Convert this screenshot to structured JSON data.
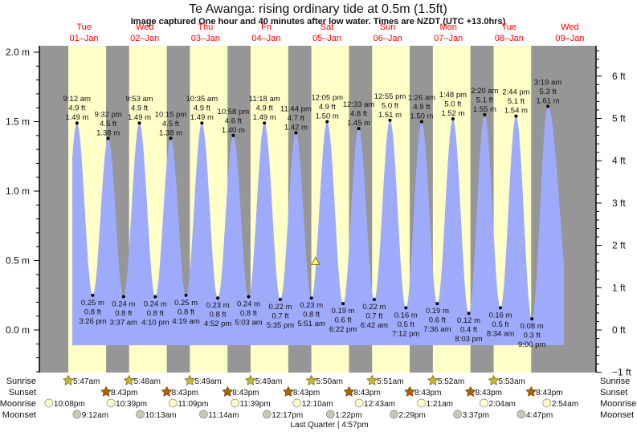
{
  "title": "Te Awanga: rising  ordinary tide at 0.5m (1.5ft)",
  "subtitle": "Image captured One hour and 40 minutes after low water. Times are NZDT (UTC +13.0hrs)",
  "colors": {
    "night": "#969696",
    "day": "#ffffc8",
    "water": "#9eabfb",
    "day_label": "#ff0000",
    "sunrise": "#b8b83c",
    "sunset": "#b06400",
    "moonrise": "#ffffcc",
    "moonset": "#c8c8b4"
  },
  "chart_data": {
    "type": "area",
    "title": "Te Awanga: rising  ordinary tide at 0.5m (1.5ft)",
    "left_axis": {
      "unit": "m",
      "range": [
        -0.31,
        2.05
      ],
      "ticks": [
        "2.0 m",
        "1.5 m",
        "1.0 m",
        "0.5 m",
        "0.0 m"
      ]
    },
    "right_axis": {
      "unit": "ft",
      "range": [
        -1,
        6.7
      ],
      "ticks": [
        "6 ft",
        "5 ft",
        "4 ft",
        "3 ft",
        "2 ft",
        "1 ft",
        "0 ft",
        "−1 ft"
      ]
    },
    "grid": false,
    "days": [
      {
        "dow": "Tue",
        "date": "01–Jan"
      },
      {
        "dow": "Wed",
        "date": "02–Jan"
      },
      {
        "dow": "Thu",
        "date": "03–Jan"
      },
      {
        "dow": "Fri",
        "date": "04–Jan"
      },
      {
        "dow": "Sat",
        "date": "05–Jan"
      },
      {
        "dow": "Sun",
        "date": "06–Jan"
      },
      {
        "dow": "Mon",
        "date": "07–Jan"
      },
      {
        "dow": "Tue",
        "date": "08–Jan"
      },
      {
        "dow": "Wed",
        "date": "09–Jan"
      }
    ],
    "tides": [
      {
        "type": "high",
        "day": 1,
        "time": "9:12 am",
        "ft": "4.9 ft",
        "m": "1.49 m"
      },
      {
        "type": "low",
        "day": 1,
        "time": "3:26 pm",
        "ft": "0.8 ft",
        "m": "0.25 m"
      },
      {
        "type": "high",
        "day": 1,
        "time": "9:32 pm",
        "ft": "4.5 ft",
        "m": "1.38 m"
      },
      {
        "type": "low",
        "day": 2,
        "time": "3:37 am",
        "ft": "0.8 ft",
        "m": "0.24 m"
      },
      {
        "type": "high",
        "day": 2,
        "time": "9:53 am",
        "ft": "4.9 ft",
        "m": "1.49 m"
      },
      {
        "type": "low",
        "day": 2,
        "time": "4:10 pm",
        "ft": "0.8 ft",
        "m": "0.24 m"
      },
      {
        "type": "high",
        "day": 2,
        "time": "10:15 pm",
        "ft": "4.5 ft",
        "m": "1.38 m"
      },
      {
        "type": "low",
        "day": 3,
        "time": "4:19 am",
        "ft": "0.8 ft",
        "m": "0.25 m"
      },
      {
        "type": "high",
        "day": 3,
        "time": "10:35 am",
        "ft": "4.9 ft",
        "m": "1.49 m"
      },
      {
        "type": "low",
        "day": 3,
        "time": "4:52 pm",
        "ft": "0.8 ft",
        "m": "0.23 m"
      },
      {
        "type": "high",
        "day": 3,
        "time": "10:58 pm",
        "ft": "4.6 ft",
        "m": "1.40 m"
      },
      {
        "type": "low",
        "day": 4,
        "time": "5:03 am",
        "ft": "0.8 ft",
        "m": "0.24 m"
      },
      {
        "type": "high",
        "day": 4,
        "time": "11:18 am",
        "ft": "4.9 ft",
        "m": "1.49 m"
      },
      {
        "type": "low",
        "day": 4,
        "time": "5:35 pm",
        "ft": "0.7 ft",
        "m": "0.22 m"
      },
      {
        "type": "high",
        "day": 4,
        "time": "11:44 pm",
        "ft": "4.7 ft",
        "m": "1.42 m"
      },
      {
        "type": "low",
        "day": 5,
        "time": "5:51 am",
        "ft": "0.8 ft",
        "m": "0.23 m"
      },
      {
        "type": "high",
        "day": 5,
        "time": "12:05 pm",
        "ft": "4.9 ft",
        "m": "1.50 m"
      },
      {
        "type": "low",
        "day": 5,
        "time": "6:22 pm",
        "ft": "0.6 ft",
        "m": "0.19 m"
      },
      {
        "type": "high",
        "day": 6,
        "time": "12:33 am",
        "ft": "4.8 ft",
        "m": "1.45 m"
      },
      {
        "type": "low",
        "day": 6,
        "time": "6:42 am",
        "ft": "0.7 ft",
        "m": "0.22 m"
      },
      {
        "type": "high",
        "day": 6,
        "time": "12:55 pm",
        "ft": "5.0 ft",
        "m": "1.51 m"
      },
      {
        "type": "low",
        "day": 6,
        "time": "7:12 pm",
        "ft": "0.5 ft",
        "m": "0.16 m"
      },
      {
        "type": "high",
        "day": 7,
        "time": "1:26 am",
        "ft": "4.9 ft",
        "m": "1.50 m"
      },
      {
        "type": "low",
        "day": 7,
        "time": "7:36 am",
        "ft": "0.6 ft",
        "m": "0.19 m"
      },
      {
        "type": "high",
        "day": 7,
        "time": "1:48 pm",
        "ft": "5.0 ft",
        "m": "1.52 m"
      },
      {
        "type": "low",
        "day": 7,
        "time": "8:03 pm",
        "ft": "0.4 ft",
        "m": "0.12 m"
      },
      {
        "type": "high",
        "day": 8,
        "time": "2:20 am",
        "ft": "5.1 ft",
        "m": "1.55 m"
      },
      {
        "type": "low",
        "day": 8,
        "time": "8:34 am",
        "ft": "0.5 ft",
        "m": "0.16 m"
      },
      {
        "type": "high",
        "day": 8,
        "time": "2:44 pm",
        "ft": "5.1 ft",
        "m": "1.54 m"
      },
      {
        "type": "low",
        "day": 8,
        "time": "9:00 pm",
        "ft": "0.3 ft",
        "m": "0.08 m"
      },
      {
        "type": "high",
        "day": 9,
        "time": "3:19 am",
        "ft": "5.3 ft",
        "m": "1.61 m"
      }
    ],
    "current": {
      "day": 5,
      "time": "7:31 am",
      "height_m": 0.5
    }
  },
  "rows": {
    "labels": {
      "sunrise": "Sunrise",
      "sunset": "Sunset",
      "moonrise": "Moonrise",
      "moonset": "Moonset"
    },
    "sunrise": [
      {
        "day": 1,
        "time": "5:47am"
      },
      {
        "day": 2,
        "time": "5:48am"
      },
      {
        "day": 3,
        "time": "5:49am"
      },
      {
        "day": 4,
        "time": "5:49am"
      },
      {
        "day": 5,
        "time": "5:50am"
      },
      {
        "day": 6,
        "time": "5:51am"
      },
      {
        "day": 7,
        "time": "5:52am"
      },
      {
        "day": 8,
        "time": "5:53am"
      }
    ],
    "sunset": [
      {
        "day": 1,
        "time": "8:43pm"
      },
      {
        "day": 2,
        "time": "8:43pm"
      },
      {
        "day": 3,
        "time": "8:43pm"
      },
      {
        "day": 4,
        "time": "8:43pm"
      },
      {
        "day": 5,
        "time": "8:43pm"
      },
      {
        "day": 6,
        "time": "8:43pm"
      },
      {
        "day": 7,
        "time": "8:43pm"
      },
      {
        "day": 8,
        "time": "8:43pm"
      }
    ],
    "moonrise": [
      {
        "day": 0,
        "time": "10:08pm"
      },
      {
        "day": 1,
        "time": "10:39pm"
      },
      {
        "day": 2,
        "time": "11:09pm"
      },
      {
        "day": 3,
        "time": "11:39pm"
      },
      {
        "day": 5,
        "time": "12:10am"
      },
      {
        "day": 6,
        "time": "12:43am"
      },
      {
        "day": 7,
        "time": "1:21am"
      },
      {
        "day": 8,
        "time": "2:04am"
      },
      {
        "day": 9,
        "time": "2:54am"
      }
    ],
    "moonset": [
      {
        "day": 1,
        "time": "9:12am"
      },
      {
        "day": 2,
        "time": "10:13am"
      },
      {
        "day": 3,
        "time": "11:14am"
      },
      {
        "day": 4,
        "time": "12:17pm"
      },
      {
        "day": 5,
        "time": "1:22pm"
      },
      {
        "day": 6,
        "time": "2:29pm"
      },
      {
        "day": 7,
        "time": "3:37pm"
      },
      {
        "day": 8,
        "time": "4:47pm"
      }
    ],
    "moon_phase": "Last Quarter | 4:57pm"
  }
}
